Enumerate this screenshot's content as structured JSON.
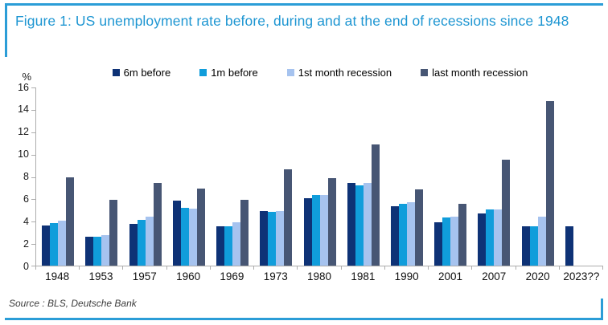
{
  "figure": {
    "title": "Figure 1: US unemployment rate before, during and at the end of recessions since 1948",
    "source": "Source : BLS, Deutsche Bank"
  },
  "colors": {
    "accent_blue": "#2B9DD7",
    "title_blue": "#1E96D2",
    "axis_gray": "#ADADAD"
  },
  "chart_data": {
    "type": "bar",
    "title": "US unemployment rate before, during and at the end of recessions since 1948",
    "xlabel": "",
    "ylabel": "%",
    "ylim": [
      0,
      16
    ],
    "yticks": [
      0,
      2,
      4,
      6,
      8,
      10,
      12,
      14,
      16
    ],
    "grid": false,
    "legend_position": "top",
    "categories": [
      "1948",
      "1953",
      "1957",
      "1960",
      "1969",
      "1973",
      "1980",
      "1981",
      "1990",
      "2001",
      "2007",
      "2020",
      "2023??"
    ],
    "series": [
      {
        "name": "6m before",
        "color": "#0E3276",
        "values": [
          3.6,
          2.6,
          3.7,
          5.8,
          3.5,
          4.9,
          6.0,
          7.4,
          5.3,
          3.9,
          4.7,
          3.5,
          3.5
        ]
      },
      {
        "name": "1m before",
        "color": "#109DDB",
        "values": [
          3.8,
          2.6,
          4.1,
          5.2,
          3.5,
          4.8,
          6.3,
          7.2,
          5.5,
          4.3,
          5.0,
          3.5,
          null
        ]
      },
      {
        "name": "1st month recession",
        "color": "#A6C3EF",
        "values": [
          4.0,
          2.7,
          4.4,
          5.1,
          3.9,
          4.9,
          6.3,
          7.4,
          5.7,
          4.4,
          5.0,
          4.4,
          null
        ]
      },
      {
        "name": "last month recession",
        "color": "#475674",
        "values": [
          7.9,
          5.9,
          7.4,
          6.9,
          5.9,
          8.6,
          7.8,
          10.8,
          6.8,
          5.5,
          9.5,
          14.7,
          null
        ]
      }
    ]
  }
}
